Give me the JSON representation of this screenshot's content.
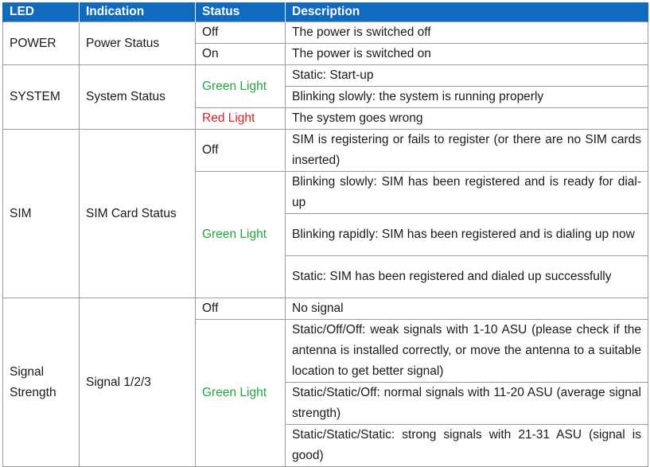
{
  "header": {
    "led": "LED",
    "indication": "Indication",
    "status": "Status",
    "description": "Description"
  },
  "power": {
    "led": "POWER",
    "indication": "Power Status",
    "off_status": "Off",
    "off_desc": "The power is switched off",
    "on_status": "On",
    "on_desc": "The power is switched on"
  },
  "system": {
    "led": "SYSTEM",
    "indication": "System Status",
    "green_status": "Green Light",
    "green_desc_1": "Static: Start-up",
    "green_desc_2": "Blinking slowly: the system is running properly",
    "red_status": "Red Light",
    "red_desc": "The system goes wrong"
  },
  "sim": {
    "led": "SIM",
    "indication": "SIM Card Status",
    "off_status": "Off",
    "off_desc": "SIM is registering or fails to register (or there are no SIM cards inserted)",
    "green_status": "Green Light",
    "green_desc_1": "Blinking slowly: SIM has been registered and is ready for dial-up",
    "green_desc_2": "Blinking rapidly: SIM has been registered and is dialing up now",
    "green_desc_3": "Static: SIM has been registered and dialed up successfully"
  },
  "signal": {
    "led": "Signal Strength",
    "indication": "Signal 1/2/3",
    "off_status": "Off",
    "off_desc": "No signal",
    "green_status": "Green Light",
    "green_desc_1": "Static/Off/Off: weak signals with 1-10 ASU (please check if the antenna is installed correctly, or move the antenna to a suitable location to get better signal)",
    "green_desc_2": "Static/Static/Off: normal signals with 11-20 ASU (average signal strength)",
    "green_desc_3": "Static/Static/Static: strong signals with 21-31 ASU (signal is good)"
  },
  "colors": {
    "header_bg": "#0f6ac0",
    "green": "#23a53c",
    "red": "#e02020"
  }
}
